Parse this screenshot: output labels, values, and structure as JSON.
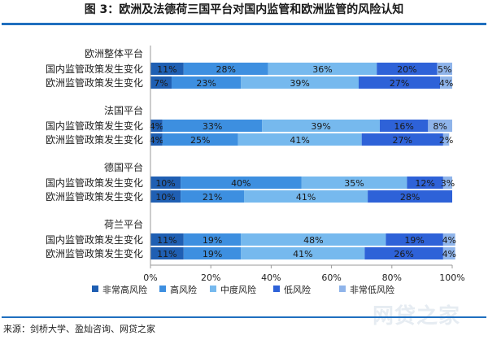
{
  "title": "图 3：欧洲及法德荷三国平台对国内监管和欧洲监管的风险认知",
  "source": "来源：剑桥大学、盈灿咨询、网贷之家",
  "watermark": "网贷之家",
  "chart_data": {
    "type": "bar",
    "orientation": "horizontal",
    "stacked": true,
    "xlim": [
      0,
      100
    ],
    "xticks": [
      "0%",
      "20%",
      "40%",
      "60%",
      "80%",
      "100%"
    ],
    "grid": false,
    "legend_position": "bottom",
    "groups": [
      {
        "name": "欧洲整体平台",
        "rows": [
          {
            "label": "国内监管政策发生变化",
            "values": [
              11,
              28,
              36,
              20,
              5
            ]
          },
          {
            "label": "欧洲监管政策发生变化",
            "values": [
              7,
              23,
              39,
              27,
              4
            ]
          }
        ]
      },
      {
        "name": "法国平台",
        "rows": [
          {
            "label": "国内监管政策发生变化",
            "values": [
              4,
              33,
              39,
              16,
              8
            ]
          },
          {
            "label": "欧洲监管政策发生变化",
            "values": [
              4,
              25,
              41,
              27,
              2
            ]
          }
        ]
      },
      {
        "name": "德国平台",
        "rows": [
          {
            "label": "国内监管政策发生变化",
            "values": [
              10,
              40,
              35,
              12,
              3
            ]
          },
          {
            "label": "欧洲监管政策发生变化",
            "values": [
              10,
              21,
              41,
              28,
              0
            ]
          }
        ]
      },
      {
        "name": "荷兰平台",
        "rows": [
          {
            "label": "国内监管政策发生变化",
            "values": [
              11,
              19,
              48,
              19,
              4
            ]
          },
          {
            "label": "欧洲监管政策发生变化",
            "values": [
              11,
              19,
              41,
              26,
              4
            ]
          }
        ]
      }
    ],
    "series": [
      {
        "name": "非常高风险",
        "color": "#1f5fb3"
      },
      {
        "name": "高风险",
        "color": "#3d8fe0"
      },
      {
        "name": "中度风险",
        "color": "#76b9ee"
      },
      {
        "name": "低风险",
        "color": "#2e62d8"
      },
      {
        "name": "非常低风险",
        "color": "#8fb4ea"
      }
    ]
  }
}
